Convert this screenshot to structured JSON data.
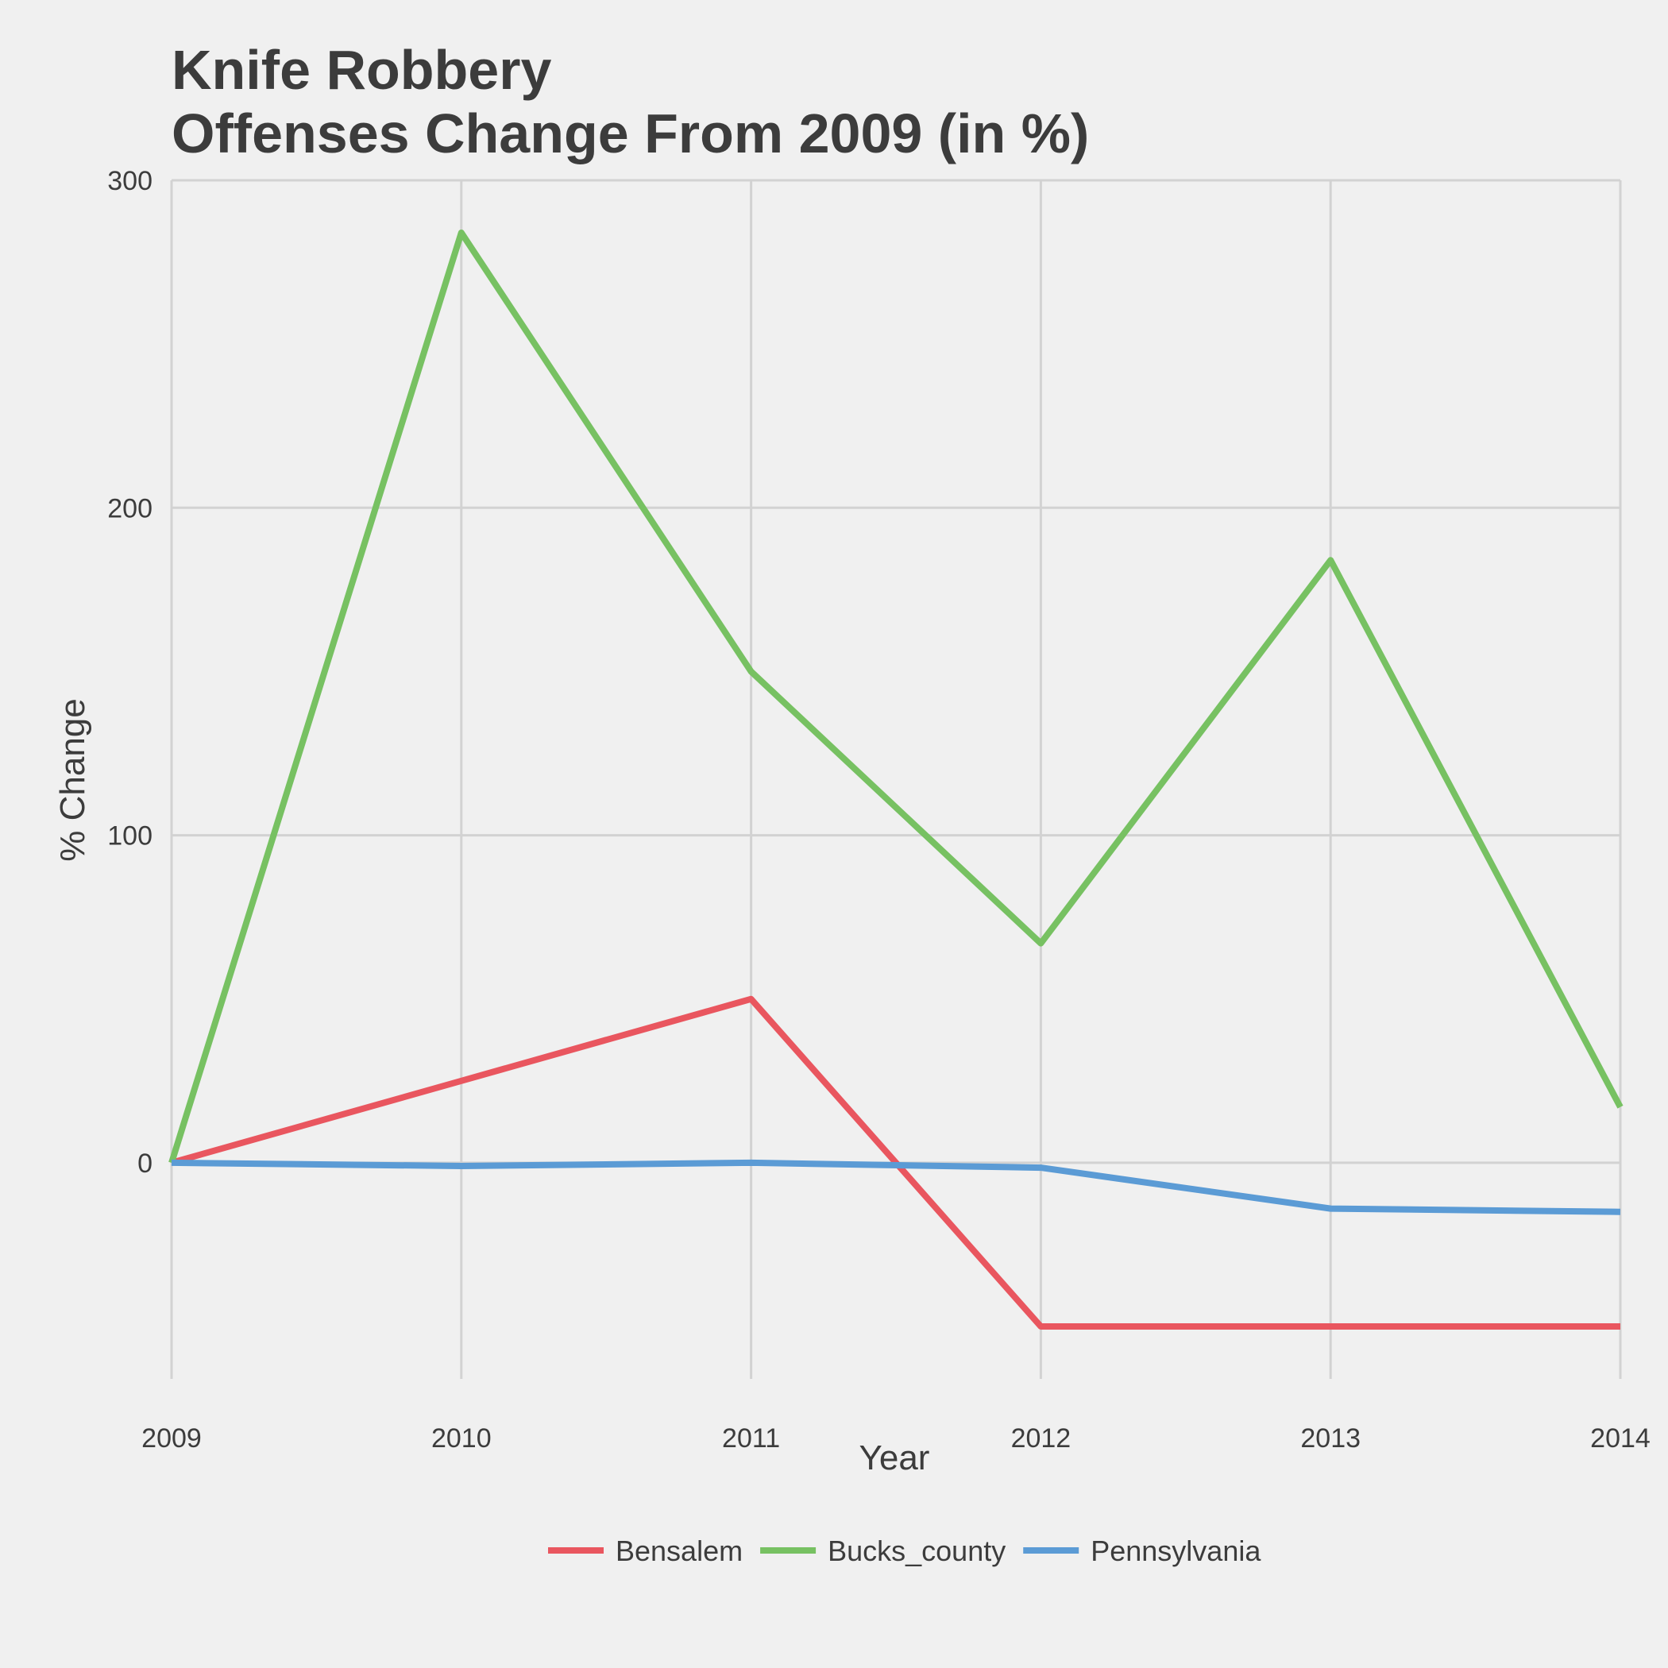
{
  "chart_data": {
    "type": "line",
    "title_lines": [
      "Knife Robbery",
      "Offenses Change From 2009 (in %)"
    ],
    "xlabel": "Year",
    "ylabel": "% Change",
    "x": [
      2009,
      2010,
      2011,
      2012,
      2013,
      2014
    ],
    "x_tick_labels": [
      "2009",
      "2010",
      "2011",
      "2012",
      "2013",
      "2014"
    ],
    "y_ticks": [
      0,
      100,
      200,
      300
    ],
    "y_tick_labels": [
      "0",
      "100",
      "200",
      "300"
    ],
    "ylim": [
      -66,
      300
    ],
    "grid": true,
    "legend_position": "bottom",
    "series": [
      {
        "name": "Bensalem",
        "color": "#e9565f",
        "values": [
          0,
          25,
          50,
          -50,
          -50,
          -50
        ]
      },
      {
        "name": "Bucks_county",
        "color": "#77c162",
        "values": [
          0,
          284,
          150,
          67,
          184,
          17
        ]
      },
      {
        "name": "Pennsylvania",
        "color": "#5b9bd5",
        "values": [
          0,
          -1,
          0,
          -1.5,
          -14,
          -15
        ]
      }
    ]
  }
}
